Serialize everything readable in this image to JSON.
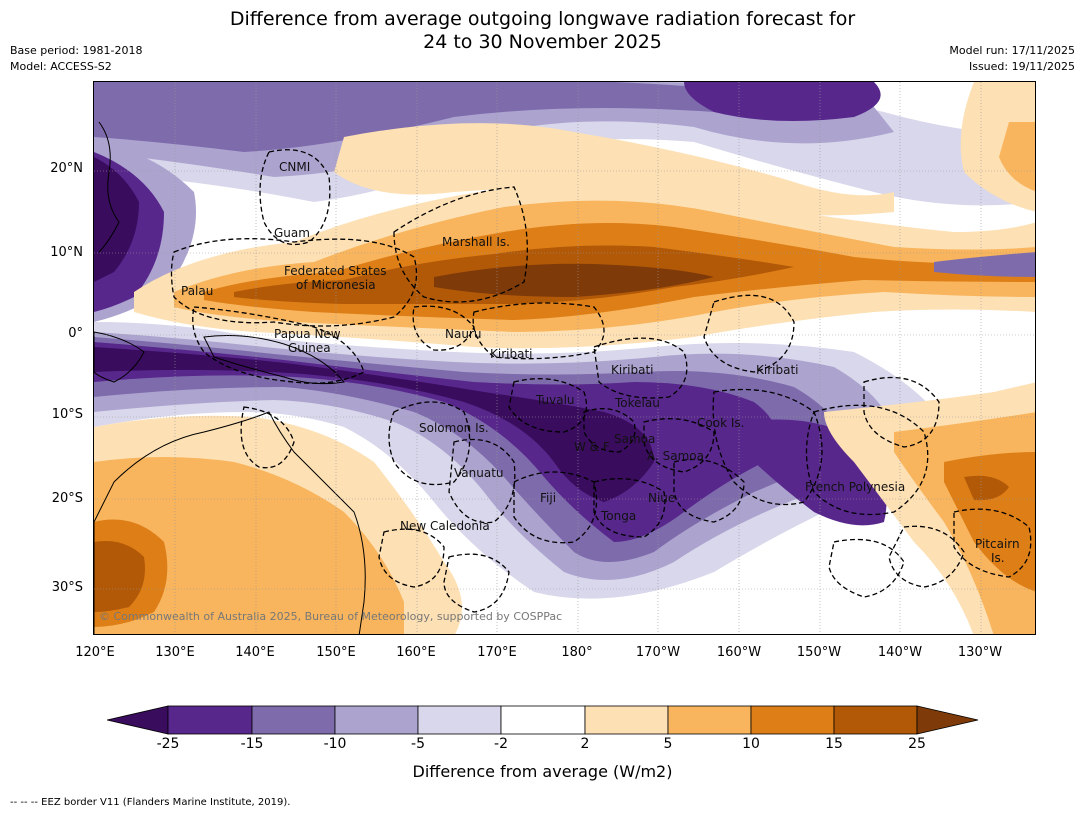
{
  "title_line1": "Difference from average outgoing longwave radiation forecast for",
  "title_line2": "24 to 30 November 2025",
  "base_period": "Base period: 1981-2018",
  "model": "Model: ACCESS-S2",
  "model_run": "Model run: 17/11/2025",
  "issued": "Issued: 19/11/2025",
  "lat_labels": [
    "20°N",
    "10°N",
    "0°",
    "10°S",
    "20°S",
    "30°S"
  ],
  "lon_labels": [
    "120°E",
    "130°E",
    "140°E",
    "150°E",
    "160°E",
    "170°E",
    "180°",
    "170°W",
    "160°W",
    "150°W",
    "140°W",
    "130°W"
  ],
  "places": {
    "cnmi": "CNMI",
    "guam": "Guam",
    "marshall": "Marshall Is.",
    "fsm_1": "Federated States",
    "fsm_2": "of Micronesia",
    "palau": "Palau",
    "png_1": "Papua New",
    "png_2": "Guinea",
    "nauru": "Nauru",
    "kiribati_w": "Kiribati",
    "kiribati_c": "Kiribati",
    "kiribati_e": "Kiribati",
    "tuvalu": "Tuvalu",
    "tokelau": "Tokelau",
    "solomon": "Solomon Is.",
    "wallis": "W & F",
    "samoa": "Samoa",
    "am_samoa": "A. Samoa",
    "cook": "Cook Is.",
    "vanuatu": "Vanuatu",
    "fiji": "Fiji",
    "niue": "Niue",
    "tonga": "Tonga",
    "french_polynesia": "French Polynesia",
    "new_caledonia": "New Caledonia",
    "pitcairn_1": "Pitcairn",
    "pitcairn_2": "Is."
  },
  "copyright": "© Commonwealth of Australia 2025, Bureau of Meteorology, supported by COSPPac",
  "colorbar": {
    "label": "Difference from average (W/m2)",
    "ticks": [
      "-25",
      "-15",
      "-10",
      "-5",
      "-2",
      "2",
      "5",
      "10",
      "15",
      "25"
    ],
    "colors": [
      "#3a0c5e",
      "#57278c",
      "#7e6bac",
      "#aca4cf",
      "#d8d7eb",
      "#ffffff",
      "#fde0b4",
      "#f8b55d",
      "#dd7e17",
      "#b25908",
      "#7e3a08"
    ]
  },
  "footnote": "-- -- -- EEZ border V11 (Flanders Marine Institute, 2019)."
}
